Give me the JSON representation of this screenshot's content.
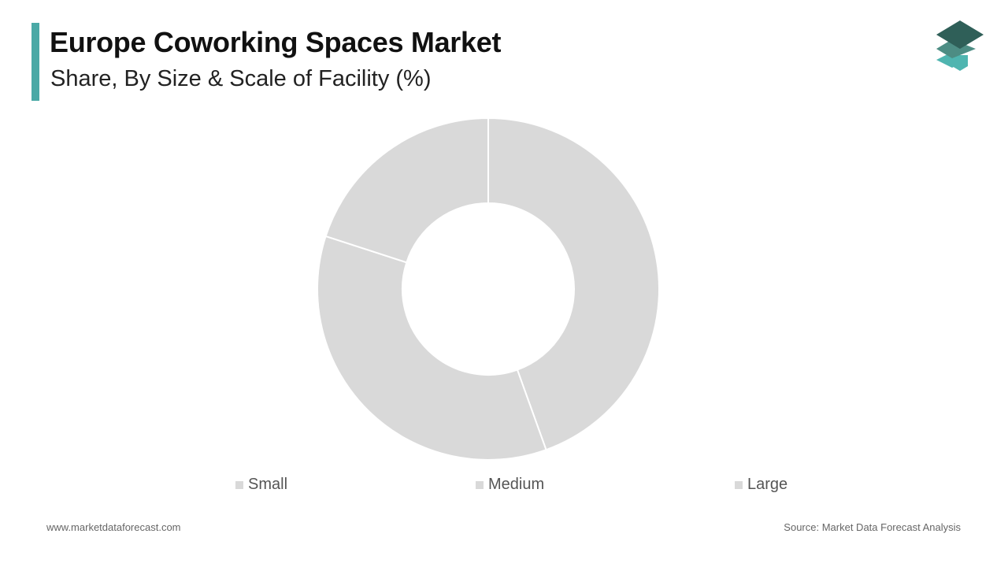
{
  "header": {
    "title": "Europe Coworking Spaces Market",
    "subtitle": "Share, By Size & Scale of Facility (%)",
    "accent_color": "#4aa9a6"
  },
  "logo": {
    "icon": "stacked-layers-logo-icon",
    "colors": [
      "#2f5f58",
      "#4d8d84",
      "#4fb5b0"
    ]
  },
  "chart_data": {
    "type": "pie",
    "donut": true,
    "categories": [
      "Small",
      "Medium",
      "Large"
    ],
    "values": [
      44.5,
      35.5,
      20
    ],
    "colors": [
      "#d9d9d9",
      "#d9d9d9",
      "#d9d9d9"
    ],
    "legend_position": "bottom"
  },
  "footer": {
    "website": "www.marketdataforecast.com",
    "source": "Source: Market Data Forecast Analysis"
  }
}
